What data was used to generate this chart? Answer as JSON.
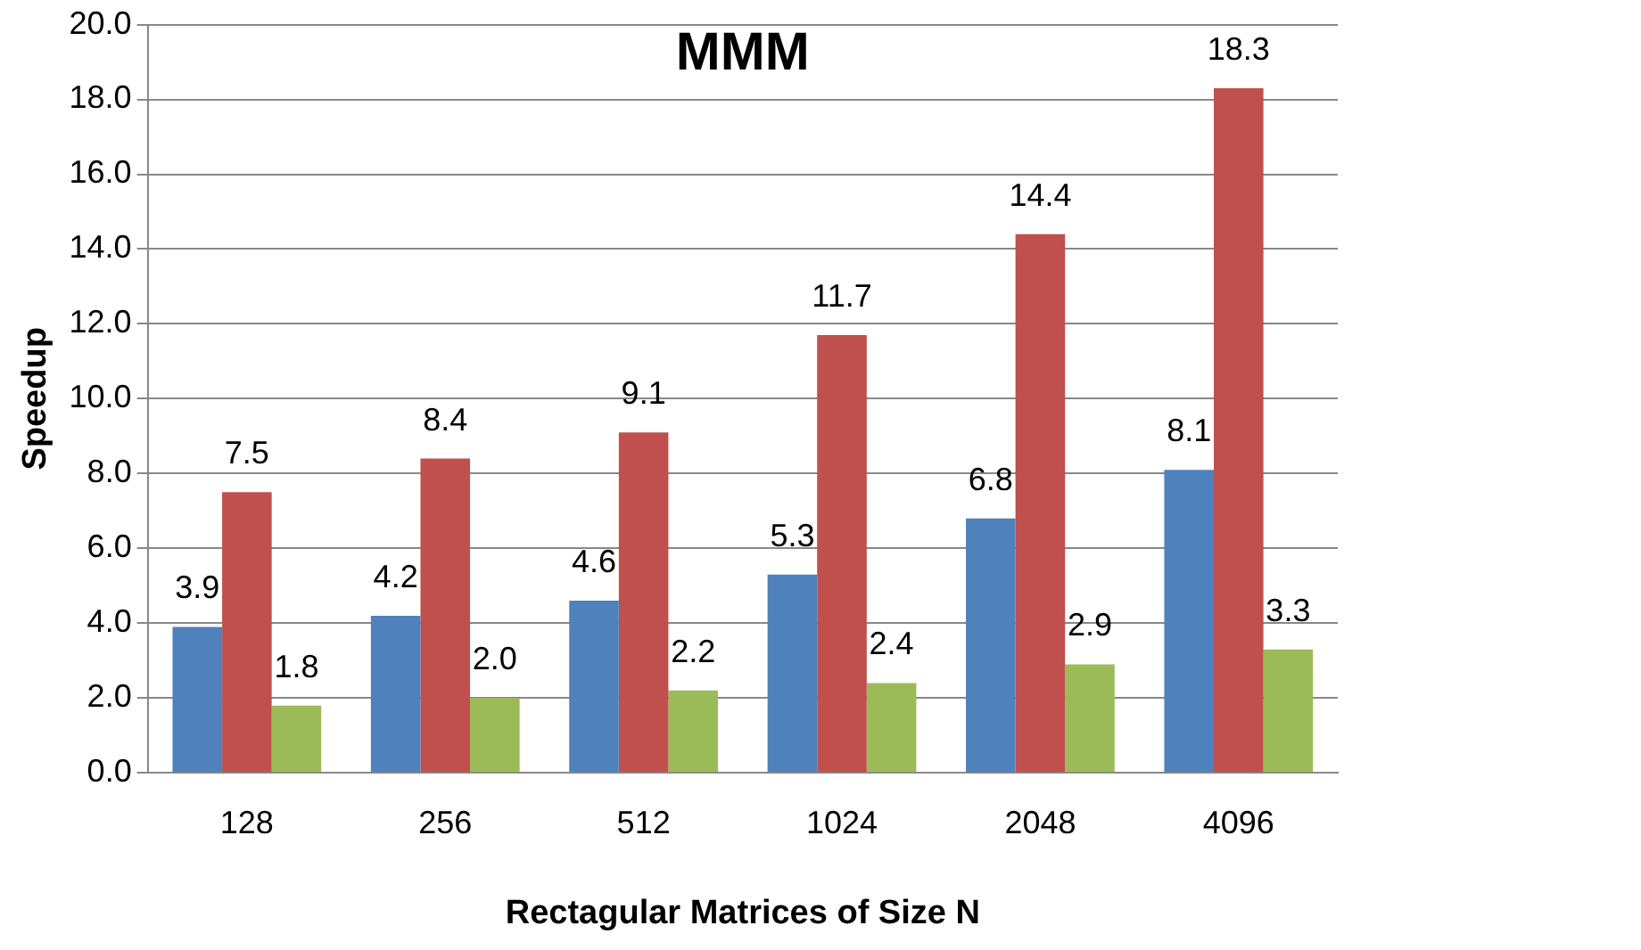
{
  "chart_data": {
    "type": "bar",
    "title": "MMM",
    "xlabel": "Rectagular Matrices of Size N",
    "ylabel": "Speedup",
    "categories": [
      "128",
      "256",
      "512",
      "1024",
      "2048",
      "4096"
    ],
    "series": [
      {
        "color": "#4f81bd",
        "values": [
          3.9,
          4.2,
          4.6,
          5.3,
          6.8,
          8.1
        ],
        "value_labels": [
          "3.9",
          "4.2",
          "4.6",
          "5.3",
          "6.8",
          "8.1"
        ]
      },
      {
        "color": "#c0504d",
        "values": [
          7.5,
          8.4,
          9.1,
          11.7,
          14.4,
          18.3
        ],
        "value_labels": [
          "7.5",
          "8.4",
          "9.1",
          "11.7",
          "14.4",
          "18.3"
        ]
      },
      {
        "color": "#9bbb59",
        "values": [
          1.8,
          2.0,
          2.2,
          2.4,
          2.9,
          3.3
        ],
        "value_labels": [
          "1.8",
          "2.0",
          "2.2",
          "2.4",
          "2.9",
          "3.3"
        ]
      }
    ],
    "ylim": [
      0,
      20
    ],
    "yticks": [
      {
        "value": 0,
        "label": "0.0"
      },
      {
        "value": 2,
        "label": "2.0"
      },
      {
        "value": 4,
        "label": "4.0"
      },
      {
        "value": 6,
        "label": "6.0"
      },
      {
        "value": 8,
        "label": "8.0"
      },
      {
        "value": 10,
        "label": "10.0"
      },
      {
        "value": 12,
        "label": "12.0"
      },
      {
        "value": 14,
        "label": "14.0"
      },
      {
        "value": 16,
        "label": "16.0"
      },
      {
        "value": 18,
        "label": "18.0"
      },
      {
        "value": 20,
        "label": "20.0"
      }
    ],
    "grid": "y"
  }
}
